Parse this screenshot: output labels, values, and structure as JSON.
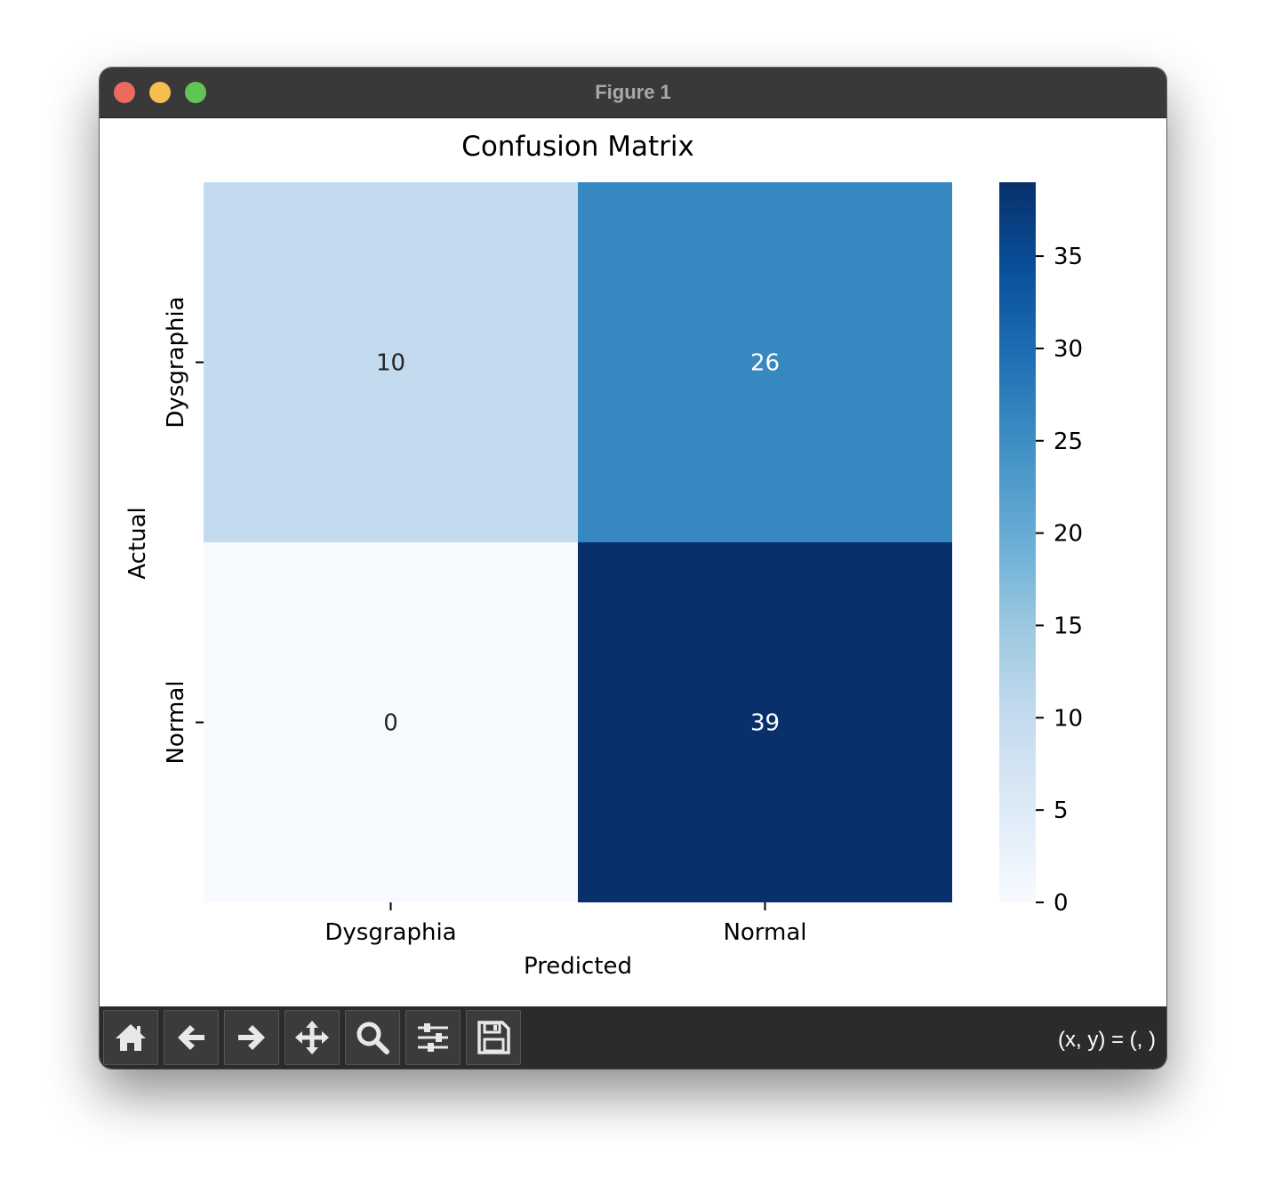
{
  "window": {
    "title": "Figure 1"
  },
  "toolbar": {
    "buttons": [
      {
        "name": "home-button",
        "icon": "home-icon"
      },
      {
        "name": "back-button",
        "icon": "arrow-left-icon"
      },
      {
        "name": "forward-button",
        "icon": "arrow-right-icon"
      },
      {
        "name": "pan-button",
        "icon": "move-icon"
      },
      {
        "name": "zoom-button",
        "icon": "magnifier-icon"
      },
      {
        "name": "configure-subplots-button",
        "icon": "sliders-icon"
      },
      {
        "name": "save-button",
        "icon": "floppy-disk-icon"
      }
    ],
    "coords_text": "(x, y) = (, )"
  },
  "chart_data": {
    "type": "heatmap",
    "title": "Confusion Matrix",
    "xlabel": "Predicted",
    "ylabel": "Actual",
    "x_categories": [
      "Dysgraphia",
      "Normal"
    ],
    "y_categories": [
      "Dysgraphia",
      "Normal"
    ],
    "values": [
      [
        10,
        26
      ],
      [
        0,
        39
      ]
    ],
    "colormap": "Blues",
    "colorbar": {
      "min": 0,
      "max": 39,
      "ticks": [
        0,
        5,
        10,
        15,
        20,
        25,
        30,
        35
      ]
    }
  }
}
